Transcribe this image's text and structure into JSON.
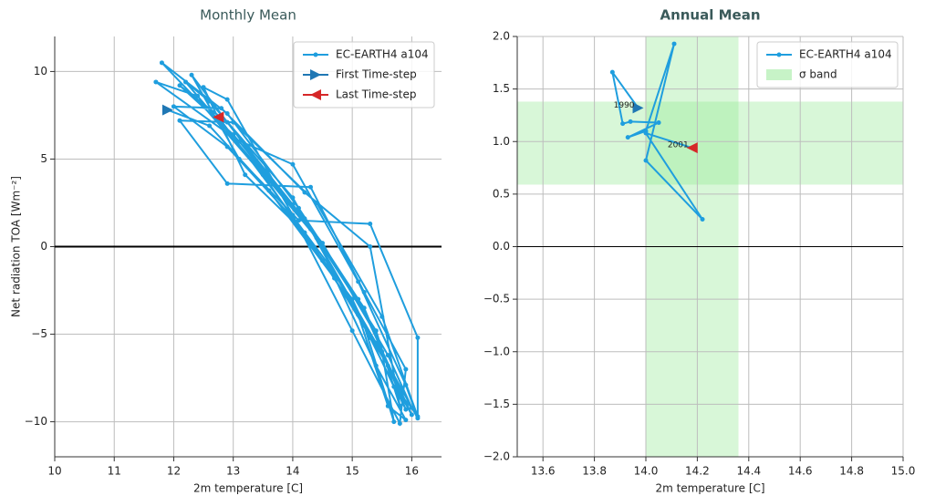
{
  "chart_data": [
    {
      "type": "line",
      "title": "Monthly Mean",
      "xlabel": "2m temperature [C]",
      "ylabel": "Net radiation TOA [Wm⁻²]",
      "xlim": [
        10,
        16.5
      ],
      "ylim": [
        -12,
        12
      ],
      "xticks": [
        10,
        11,
        12,
        13,
        14,
        15,
        16
      ],
      "yticks": [
        {
          "value": -10,
          "label": "−10"
        },
        {
          "value": -5,
          "label": "−5"
        },
        0,
        5,
        10
      ],
      "grid": true,
      "hline": {
        "y": 0,
        "color": "#000000"
      },
      "legend": "upper right",
      "series": [
        {
          "name": "EC-EARTH4 a104",
          "color": "#1f9ede",
          "x": [
            11.9,
            12.6,
            13.6,
            14.7,
            15.6,
            15.9,
            15.3,
            14.2,
            13.0,
            12.1,
            12.9,
            14.0,
            15.2,
            15.8,
            16.0,
            15.1,
            14.1,
            12.9,
            11.8,
            12.5,
            13.5,
            14.5,
            15.5,
            15.7,
            15.2,
            14.0,
            12.6,
            12.2,
            13.0,
            14.0,
            15.1,
            15.9,
            16.1,
            15.4,
            14.3,
            13.1,
            11.7,
            12.4,
            13.3,
            14.4,
            15.4,
            15.8,
            15.3,
            14.2,
            12.8,
            12.0,
            12.9,
            13.9,
            15.0,
            15.7,
            16.0,
            15.6,
            14.5,
            13.3,
            12.3,
            13.1,
            14.1,
            15.3,
            16.1,
            16.1,
            15.5,
            14.4,
            13.0,
            12.1,
            12.9,
            14.3,
            15.2,
            15.9,
            15.8,
            15.0,
            14.0,
            12.9,
            12.5,
            13.2,
            14.2,
            15.1,
            15.6,
            15.9,
            15.4,
            14.6,
            12.75
          ],
          "values": [
            7.8,
            6.9,
            3.2,
            -1.8,
            -6.8,
            -9.3,
            -5.2,
            1.6,
            6.4,
            9.2,
            7.1,
            2.4,
            -3.5,
            -8.4,
            -9.6,
            -3.0,
            2.2,
            7.6,
            10.5,
            8.0,
            4.1,
            -0.8,
            -6.0,
            -10.0,
            -4.5,
            2.8,
            8.3,
            9.4,
            6.2,
            4.7,
            -2.0,
            -7.9,
            -9.8,
            -5.5,
            1.0,
            6.0,
            9.4,
            8.6,
            5.0,
            0.5,
            -4.8,
            -9.1,
            0.0,
            3.1,
            7.9,
            8.0,
            5.7,
            2.0,
            -3.0,
            -8.0,
            -9.2,
            -6.2,
            0.2,
            5.3,
            9.8,
            5.0,
            1.5,
            1.3,
            -5.2,
            -9.7,
            -4.0,
            2.5,
            7.1,
            7.2,
            3.6,
            3.4,
            -2.6,
            -7.0,
            -10.1,
            -4.8,
            1.8,
            8.4,
            9.1,
            4.1,
            0.8,
            -3.9,
            -9.1,
            -9.9,
            -6.8,
            -1.0,
            7.4
          ]
        }
      ],
      "first_marker": {
        "name": "First Time-step",
        "color": "#1f77b4"
      },
      "last_marker": {
        "name": "Last Time-step",
        "color": "#d62728"
      }
    },
    {
      "type": "line",
      "title": "Annual Mean",
      "xlabel": "2m temperature [C]",
      "xlim": [
        13.5,
        15
      ],
      "ylim": [
        -2,
        2
      ],
      "xticks": [
        13.6,
        13.8,
        {
          "value": 14,
          "label": "14.0"
        },
        14.2,
        14.4,
        14.6,
        14.8,
        {
          "value": 15,
          "label": "15.0"
        }
      ],
      "yticks": [
        {
          "value": -2,
          "label": "−2.0"
        },
        {
          "value": -1.5,
          "label": "−1.5"
        },
        {
          "value": -1,
          "label": "−1.0"
        },
        {
          "value": -0.5,
          "label": "−0.5"
        },
        {
          "value": 0,
          "label": "0.0"
        },
        0.5,
        {
          "value": 1,
          "label": "1.0"
        },
        1.5,
        {
          "value": 2,
          "label": "2.0"
        }
      ],
      "grid": true,
      "hline": {
        "y": 0,
        "color": "#000000"
      },
      "legend": "upper right",
      "series": [
        {
          "name": "EC-EARTH4 a104",
          "color": "#1f9ede",
          "x": [
            13.97,
            13.87,
            13.91,
            13.94,
            14.05,
            13.93,
            14.0,
            14.11,
            14.0,
            14.22,
            14.0,
            14.18
          ],
          "values": [
            1.32,
            1.66,
            1.17,
            1.19,
            1.18,
            1.04,
            1.1,
            1.93,
            0.82,
            0.26,
            1.08,
            0.94
          ]
        }
      ],
      "first_marker": {
        "color": "#1f77b4"
      },
      "last_marker": {
        "color": "#d62728"
      },
      "annotations": [
        {
          "text": "1990",
          "x": 13.97,
          "y": 1.32
        },
        {
          "text": "2001",
          "x": 14.18,
          "y": 0.94
        }
      ],
      "band": {
        "name": "σ band",
        "color": "#8fe88f",
        "x": [
          14.0,
          14.36
        ],
        "y": [
          0.59,
          1.38
        ]
      }
    }
  ]
}
